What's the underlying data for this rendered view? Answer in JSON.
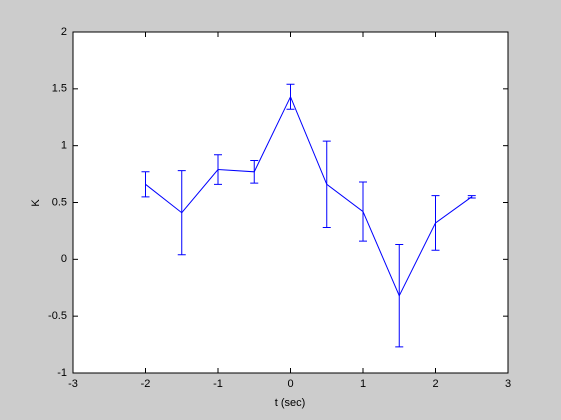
{
  "chart_data": {
    "type": "errorbar",
    "xlabel": "t (sec)",
    "ylabel": "K",
    "x": [
      -2,
      -1.5,
      -1,
      -0.5,
      0,
      0.5,
      1,
      1.5,
      2,
      2.5
    ],
    "series": [
      {
        "color": "#0000ff",
        "values": [
          0.66,
          0.41,
          0.79,
          0.77,
          1.43,
          0.66,
          0.42,
          -0.32,
          0.32,
          0.55
        ],
        "errors": [
          0.11,
          0.37,
          0.13,
          0.1,
          0.11,
          0.38,
          0.26,
          0.45,
          0.24,
          0.01
        ]
      }
    ],
    "xlim": [
      -3,
      3
    ],
    "xticks": [
      -3,
      -2,
      -1,
      0,
      1,
      2,
      3
    ],
    "ylim": [
      -1,
      2
    ],
    "yticks": [
      -1,
      -0.5,
      0,
      0.5,
      1,
      1.5,
      2
    ],
    "grid": false
  }
}
